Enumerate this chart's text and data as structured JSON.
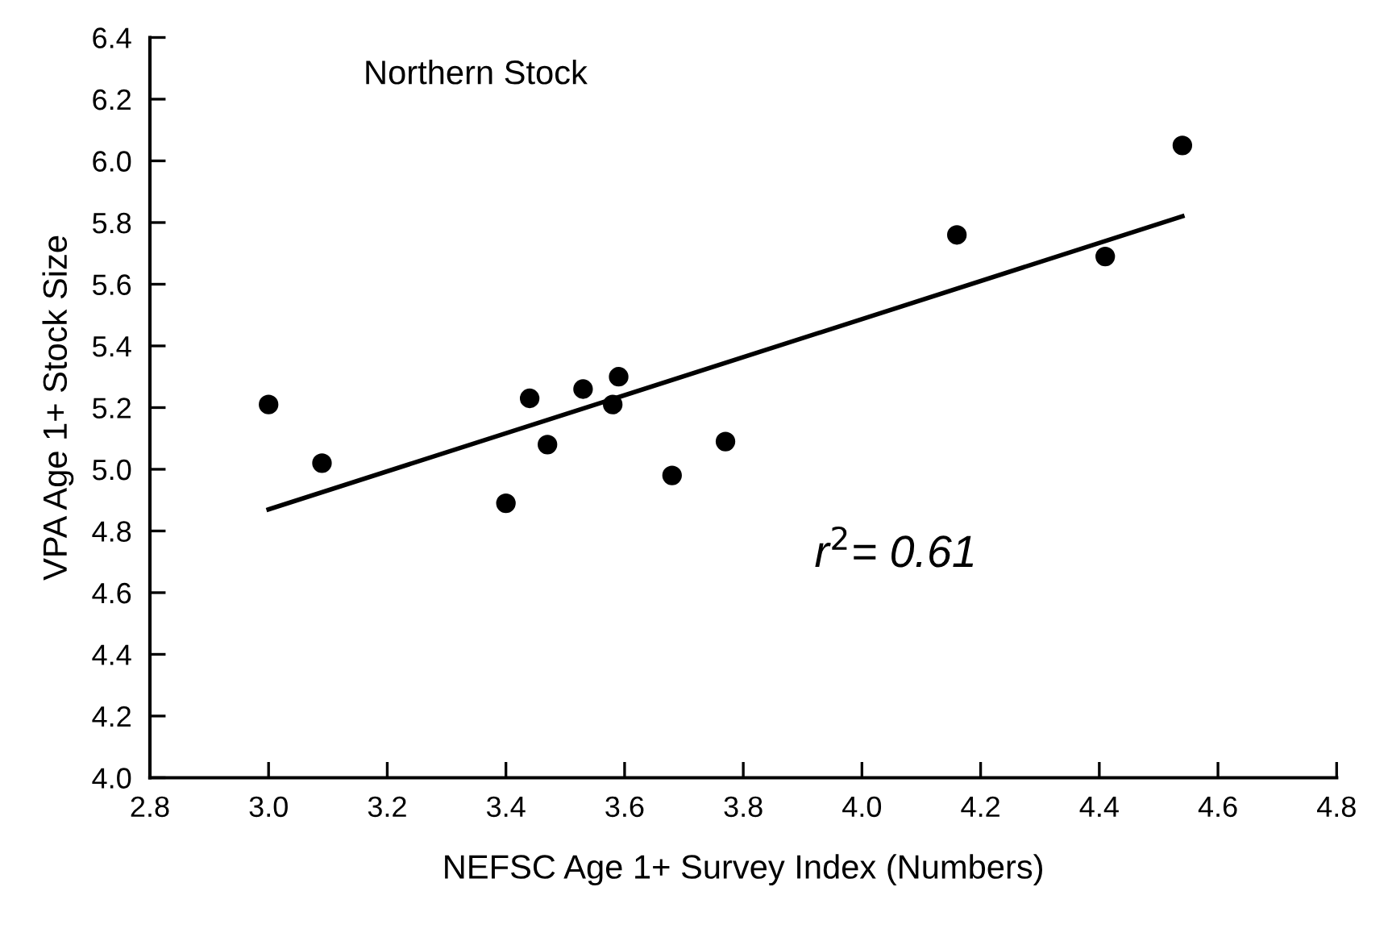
{
  "chart_data": {
    "type": "scatter",
    "title": "Northern Stock",
    "xlabel": "NEFSC Age 1+ Survey Index (Numbers)",
    "ylabel": "VPA Age 1+ Stock Size",
    "xlim": [
      2.8,
      4.8
    ],
    "xticks": [
      {
        "value": 2.8,
        "label": "2.8"
      },
      {
        "value": 3.0,
        "label": "3.0"
      },
      {
        "value": 3.2,
        "label": "3.2"
      },
      {
        "value": 3.4,
        "label": "3.4"
      },
      {
        "value": 3.6,
        "label": "3.6"
      },
      {
        "value": 3.8,
        "label": "3.8"
      },
      {
        "value": 4.0,
        "label": "4.0"
      },
      {
        "value": 4.2,
        "label": "4.2"
      },
      {
        "value": 4.4,
        "label": "4.4"
      },
      {
        "value": 4.6,
        "label": "4.6"
      },
      {
        "value": 4.8,
        "label": "4.8"
      }
    ],
    "ylim": [
      4.0,
      6.4
    ],
    "yticks": [
      {
        "value": 4.0,
        "label": "4.0"
      },
      {
        "value": 4.2,
        "label": "4.2"
      },
      {
        "value": 4.4,
        "label": "4.4"
      },
      {
        "value": 4.6,
        "label": "4.6"
      },
      {
        "value": 4.8,
        "label": "4.8"
      },
      {
        "value": 5.0,
        "label": "5.0"
      },
      {
        "value": 5.2,
        "label": "5.2"
      },
      {
        "value": 5.4,
        "label": "5.4"
      },
      {
        "value": 5.6,
        "label": "5.6"
      },
      {
        "value": 5.8,
        "label": "5.8"
      },
      {
        "value": 6.0,
        "label": "6.0"
      },
      {
        "value": 6.2,
        "label": "6.2"
      },
      {
        "value": 6.4,
        "label": "6.4"
      }
    ],
    "grid": false,
    "legend": false,
    "marker": "circle",
    "series": [
      {
        "color": "#000000",
        "x": [
          3.0,
          3.09,
          3.4,
          3.44,
          3.47,
          3.53,
          3.58,
          3.59,
          3.68,
          3.77,
          4.16,
          4.41,
          4.54
        ],
        "values": [
          5.21,
          5.02,
          4.89,
          5.23,
          5.08,
          5.26,
          5.21,
          5.3,
          4.98,
          5.09,
          5.76,
          5.69,
          6.05
        ]
      },
      {
        "type": "line",
        "color": "#000000",
        "x": [
          3.0,
          4.54
        ],
        "values": [
          4.87,
          5.82
        ],
        "marker": "none",
        "line_style": "solid"
      }
    ],
    "annotations": [
      "r$^{2}$= 0.61"
    ]
  }
}
